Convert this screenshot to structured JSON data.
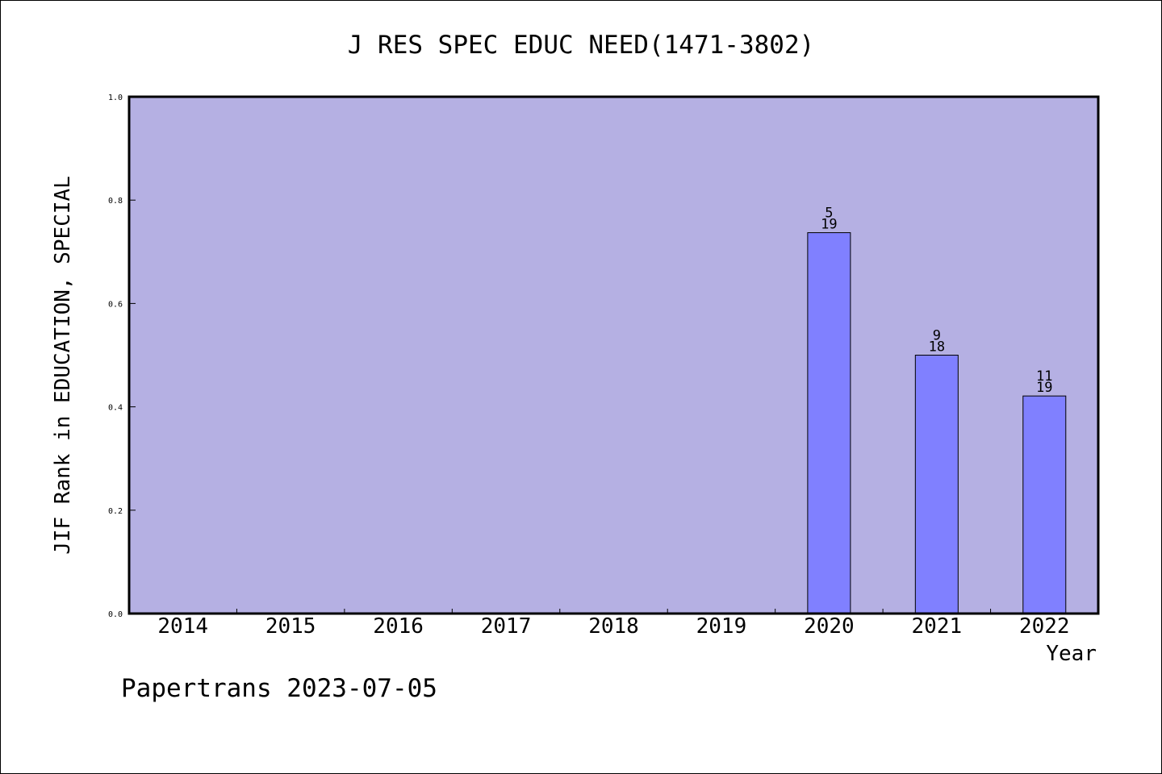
{
  "chart_data": {
    "type": "bar",
    "title": "J RES SPEC EDUC NEED(1471-3802)",
    "xlabel": "Year",
    "ylabel": "JIF Rank in EDUCATION, SPECIAL",
    "categories": [
      "2014",
      "2015",
      "2016",
      "2017",
      "2018",
      "2019",
      "2020",
      "2021",
      "2022"
    ],
    "values": [
      null,
      null,
      null,
      null,
      null,
      null,
      0.737,
      0.5,
      0.421
    ],
    "bar_labels": [
      null,
      null,
      null,
      null,
      null,
      null,
      {
        "rank": "5",
        "total": "19"
      },
      {
        "rank": "9",
        "total": "18"
      },
      {
        "rank": "11",
        "total": "19"
      }
    ],
    "ylim": [
      0,
      1
    ],
    "yticks": [
      "0.0",
      "0.2",
      "0.4",
      "0.6",
      "0.8",
      "1.0"
    ],
    "grid": false,
    "colors": {
      "plot_background": "#b5b0e3",
      "bar_fill": "#8080ff",
      "axis": "#000000"
    }
  },
  "footer": {
    "watermark": "Papertrans 2023-07-05"
  }
}
